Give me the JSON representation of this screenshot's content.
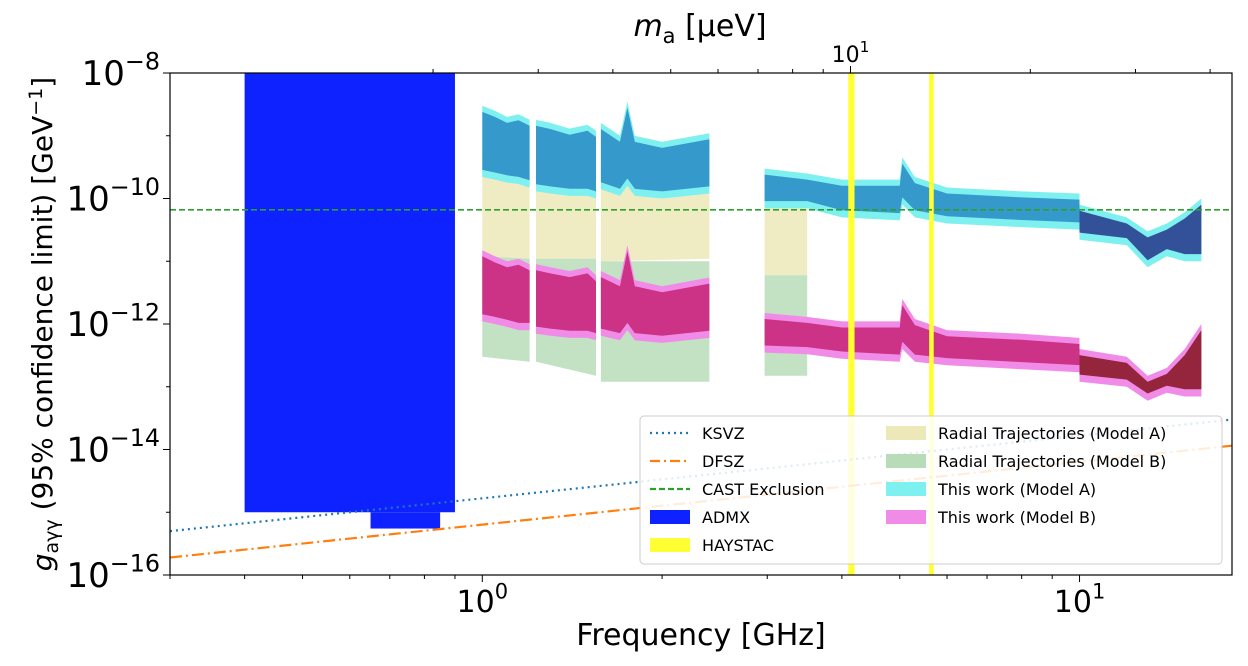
{
  "chart_data": {
    "type": "area",
    "top_axis_label": "m_a [μeV]",
    "top_axis_ticks": [
      {
        "base": "10",
        "exp": "1",
        "x_ghz": 2.418
      }
    ],
    "xlabel": "Frequency [GHz]",
    "ylabel": "g_aγγ (95% confidence limit) [GeV^-1]",
    "x_scale": "log",
    "y_scale": "log",
    "xlim": [
      0.3,
      18.0
    ],
    "ylim": [
      1e-16,
      1e-08
    ],
    "x_ticks": [
      {
        "base": "10",
        "exp": "0",
        "value": 1
      },
      {
        "base": "10",
        "exp": "1",
        "value": 10
      }
    ],
    "y_ticks": [
      {
        "base": "10",
        "exp": "−8",
        "value": 1e-08
      },
      {
        "base": "10",
        "exp": "−10",
        "value": 1e-10
      },
      {
        "base": "10",
        "exp": "−12",
        "value": 1e-12
      },
      {
        "base": "10",
        "exp": "−14",
        "value": 1e-14
      },
      {
        "base": "10",
        "exp": "−16",
        "value": 1e-16
      }
    ],
    "legend_position": "bottom-right",
    "series": [
      {
        "name": "KSVZ",
        "kind": "line",
        "style": "dotted",
        "color": "#1f77b4",
        "points": [
          [
            0.3,
            5e-16
          ],
          [
            18.0,
            3e-14
          ]
        ]
      },
      {
        "name": "DFSZ",
        "kind": "line",
        "style": "dashdot",
        "color": "#ff7f0e",
        "points": [
          [
            0.3,
            1.9e-16
          ],
          [
            18.0,
            1.15e-14
          ]
        ]
      },
      {
        "name": "CAST Exclusion",
        "kind": "hline",
        "style": "dashed",
        "color": "#2ca02c",
        "value": 6.6e-11
      },
      {
        "name": "ADMX",
        "kind": "rects",
        "color": "#0e22ff",
        "rects": [
          {
            "x0": 0.4,
            "x1": 0.9,
            "y0": 1e-15,
            "y1": 1e-08
          },
          {
            "x0": 0.65,
            "x1": 0.85,
            "y0": 5.5e-16,
            "y1": 1e-15
          }
        ]
      },
      {
        "name": "HAYSTAC",
        "kind": "vbands",
        "color": "#ffff33",
        "bands": [
          {
            "x0": 4.1,
            "x1": 4.2,
            "y0": 1e-16,
            "y1": 1e-08
          },
          {
            "x0": 5.6,
            "x1": 5.7,
            "y0": 1e-16,
            "y1": 1e-08
          }
        ]
      },
      {
        "name": "Radial Trajectories (Model A)",
        "kind": "bands",
        "color": "#ece8b8",
        "bands": [
          {
            "x": [
              1.0,
              1.2
            ],
            "lo": [
              1.2e-11,
              1.1e-11
            ],
            "hi": [
              5e-10,
              4e-10
            ]
          },
          {
            "x": [
              1.23,
              1.55
            ],
            "lo": [
              1.1e-11,
              1.1e-11
            ],
            "hi": [
              4e-10,
              4e-10
            ]
          },
          {
            "x": [
              1.58,
              2.4
            ],
            "lo": [
              1e-11,
              1.1e-11
            ],
            "hi": [
              4e-10,
              3.5e-10
            ]
          },
          {
            "x": [
              2.97,
              3.5
            ],
            "lo": [
              6e-12,
              6e-12
            ],
            "hi": [
              8e-11,
              8e-11
            ]
          }
        ]
      },
      {
        "name": "Radial Trajectories (Model B)",
        "kind": "bands",
        "color": "#b8dcb8",
        "bands": [
          {
            "x": [
              1.0,
              1.2
            ],
            "lo": [
              3e-13,
              2.5e-13
            ],
            "hi": [
              1.2e-11,
              1.1e-11
            ]
          },
          {
            "x": [
              1.23,
              1.55
            ],
            "lo": [
              2.5e-13,
              1.5e-13
            ],
            "hi": [
              1.1e-11,
              1.1e-11
            ]
          },
          {
            "x": [
              1.58,
              2.4
            ],
            "lo": [
              1.2e-13,
              1.2e-13
            ],
            "hi": [
              1e-11,
              1e-11
            ]
          },
          {
            "x": [
              2.97,
              3.5
            ],
            "lo": [
              1.5e-13,
              1.5e-13
            ],
            "hi": [
              6e-12,
              6e-12
            ]
          }
        ]
      },
      {
        "name": "This work (Model A)",
        "kind": "bands",
        "color": "#7ff0f0",
        "inner_color": "#2f8fc8",
        "dark_color": "#2a3f8f",
        "bands": [
          {
            "x": [
              1.0,
              1.05,
              1.1,
              1.15,
              1.2
            ],
            "lo": [
              2.2e-10,
              2e-10,
              1.8e-10,
              1.7e-10,
              1.5e-10
            ],
            "hi": [
              3e-09,
              2.5e-09,
              2e-09,
              2.2e-09,
              1.8e-09
            ]
          },
          {
            "x": [
              1.23,
              1.3,
              1.4,
              1.5,
              1.55
            ],
            "lo": [
              1.3e-10,
              1.2e-10,
              1.1e-10,
              1.1e-10,
              1e-10
            ],
            "hi": [
              1.8e-09,
              1.6e-09,
              1.3e-09,
              1.5e-09,
              1.2e-09
            ]
          },
          {
            "x": [
              1.58,
              1.7,
              1.75,
              1.8,
              2.0,
              2.4
            ],
            "lo": [
              1.4e-10,
              1.1e-10,
              1.6e-10,
              1.1e-10,
              1e-10,
              1.2e-10
            ],
            "hi": [
              1.6e-09,
              1e-09,
              3.5e-09,
              1e-09,
              8e-10,
              1.1e-09
            ]
          },
          {
            "x": [
              2.97,
              3.5,
              4.0,
              5.0,
              5.05,
              5.3,
              6.0,
              8.0,
              10.0
            ],
            "lo": [
              7e-11,
              7e-11,
              5e-11,
              4.5e-11,
              8e-11,
              5e-11,
              4e-11,
              3.5e-11,
              3.2e-11
            ],
            "hi": [
              3e-10,
              2.5e-10,
              2e-10,
              2e-10,
              4.5e-10,
              2.2e-10,
              1.5e-10,
              1.3e-10,
              1.2e-10
            ]
          },
          {
            "x": [
              10.0,
              12.0,
              13.0,
              14.0,
              15.0,
              16.0
            ],
            "lo": [
              2.2e-11,
              1.8e-11,
              8e-12,
              1.2e-11,
              1e-11,
              1e-11
            ],
            "hi": [
              8e-11,
              5e-11,
              3e-11,
              4e-11,
              6e-11,
              1e-10
            ]
          }
        ]
      },
      {
        "name": "This work (Model B)",
        "kind": "bands",
        "color": "#f08ce8",
        "inner_color": "#c8287a",
        "dark_color": "#8b1a2a",
        "bands": [
          {
            "x": [
              1.0,
              1.05,
              1.1,
              1.15,
              1.2
            ],
            "lo": [
              1.1e-12,
              1e-12,
              9e-13,
              8e-13,
              8e-13
            ],
            "hi": [
              1.5e-11,
              1.2e-11,
              1e-11,
              1.1e-11,
              9e-12
            ]
          },
          {
            "x": [
              1.23,
              1.3,
              1.4,
              1.5,
              1.55
            ],
            "lo": [
              7e-13,
              6.5e-13,
              6e-13,
              6e-13,
              5.5e-13
            ],
            "hi": [
              9e-12,
              8e-12,
              7e-12,
              8e-12,
              6e-12
            ]
          },
          {
            "x": [
              1.58,
              1.7,
              1.75,
              1.8,
              2.0,
              2.4
            ],
            "lo": [
              6.5e-13,
              5.5e-13,
              8e-13,
              5.5e-13,
              5e-13,
              6e-13
            ],
            "hi": [
              7e-12,
              5e-12,
              1.8e-11,
              5e-12,
              4e-12,
              5.5e-12
            ]
          },
          {
            "x": [
              2.97,
              3.5,
              4.0,
              5.0,
              5.05,
              5.3,
              6.0,
              8.0,
              10.0
            ],
            "lo": [
              3.5e-13,
              3.3e-13,
              2.8e-13,
              2.5e-13,
              4e-13,
              2.5e-13,
              2.2e-13,
              1.9e-13,
              1.7e-13
            ],
            "hi": [
              1.5e-12,
              1.3e-12,
              1.1e-12,
              1.1e-12,
              2.5e-12,
              1.2e-12,
              8e-13,
              7e-13,
              6e-13
            ]
          },
          {
            "x": [
              10.0,
              12.0,
              13.0,
              14.0,
              15.0,
              16.0
            ],
            "lo": [
              1.2e-13,
              1e-13,
              6e-14,
              8e-14,
              7e-14,
              7e-14
            ],
            "hi": [
              4e-13,
              3e-13,
              1.5e-13,
              2e-13,
              4e-13,
              1e-12
            ]
          }
        ]
      }
    ],
    "legend": [
      {
        "label": "KSVZ",
        "symbol": "dotted-line",
        "color": "#1f77b4"
      },
      {
        "label": "DFSZ",
        "symbol": "dashdot-line",
        "color": "#ff7f0e"
      },
      {
        "label": "CAST Exclusion",
        "symbol": "dashed-line",
        "color": "#2ca02c"
      },
      {
        "label": "ADMX",
        "symbol": "patch",
        "color": "#0e22ff"
      },
      {
        "label": "HAYSTAC",
        "symbol": "patch",
        "color": "#ffff33"
      },
      {
        "label": "Radial Trajectories (Model A)",
        "symbol": "patch",
        "color": "#ece8b8"
      },
      {
        "label": "Radial Trajectories (Model B)",
        "symbol": "patch",
        "color": "#b8dcb8"
      },
      {
        "label": "This work (Model A)",
        "symbol": "patch",
        "color": "#7ff0f0"
      },
      {
        "label": "This work (Model B)",
        "symbol": "patch",
        "color": "#f08ce8"
      }
    ]
  }
}
